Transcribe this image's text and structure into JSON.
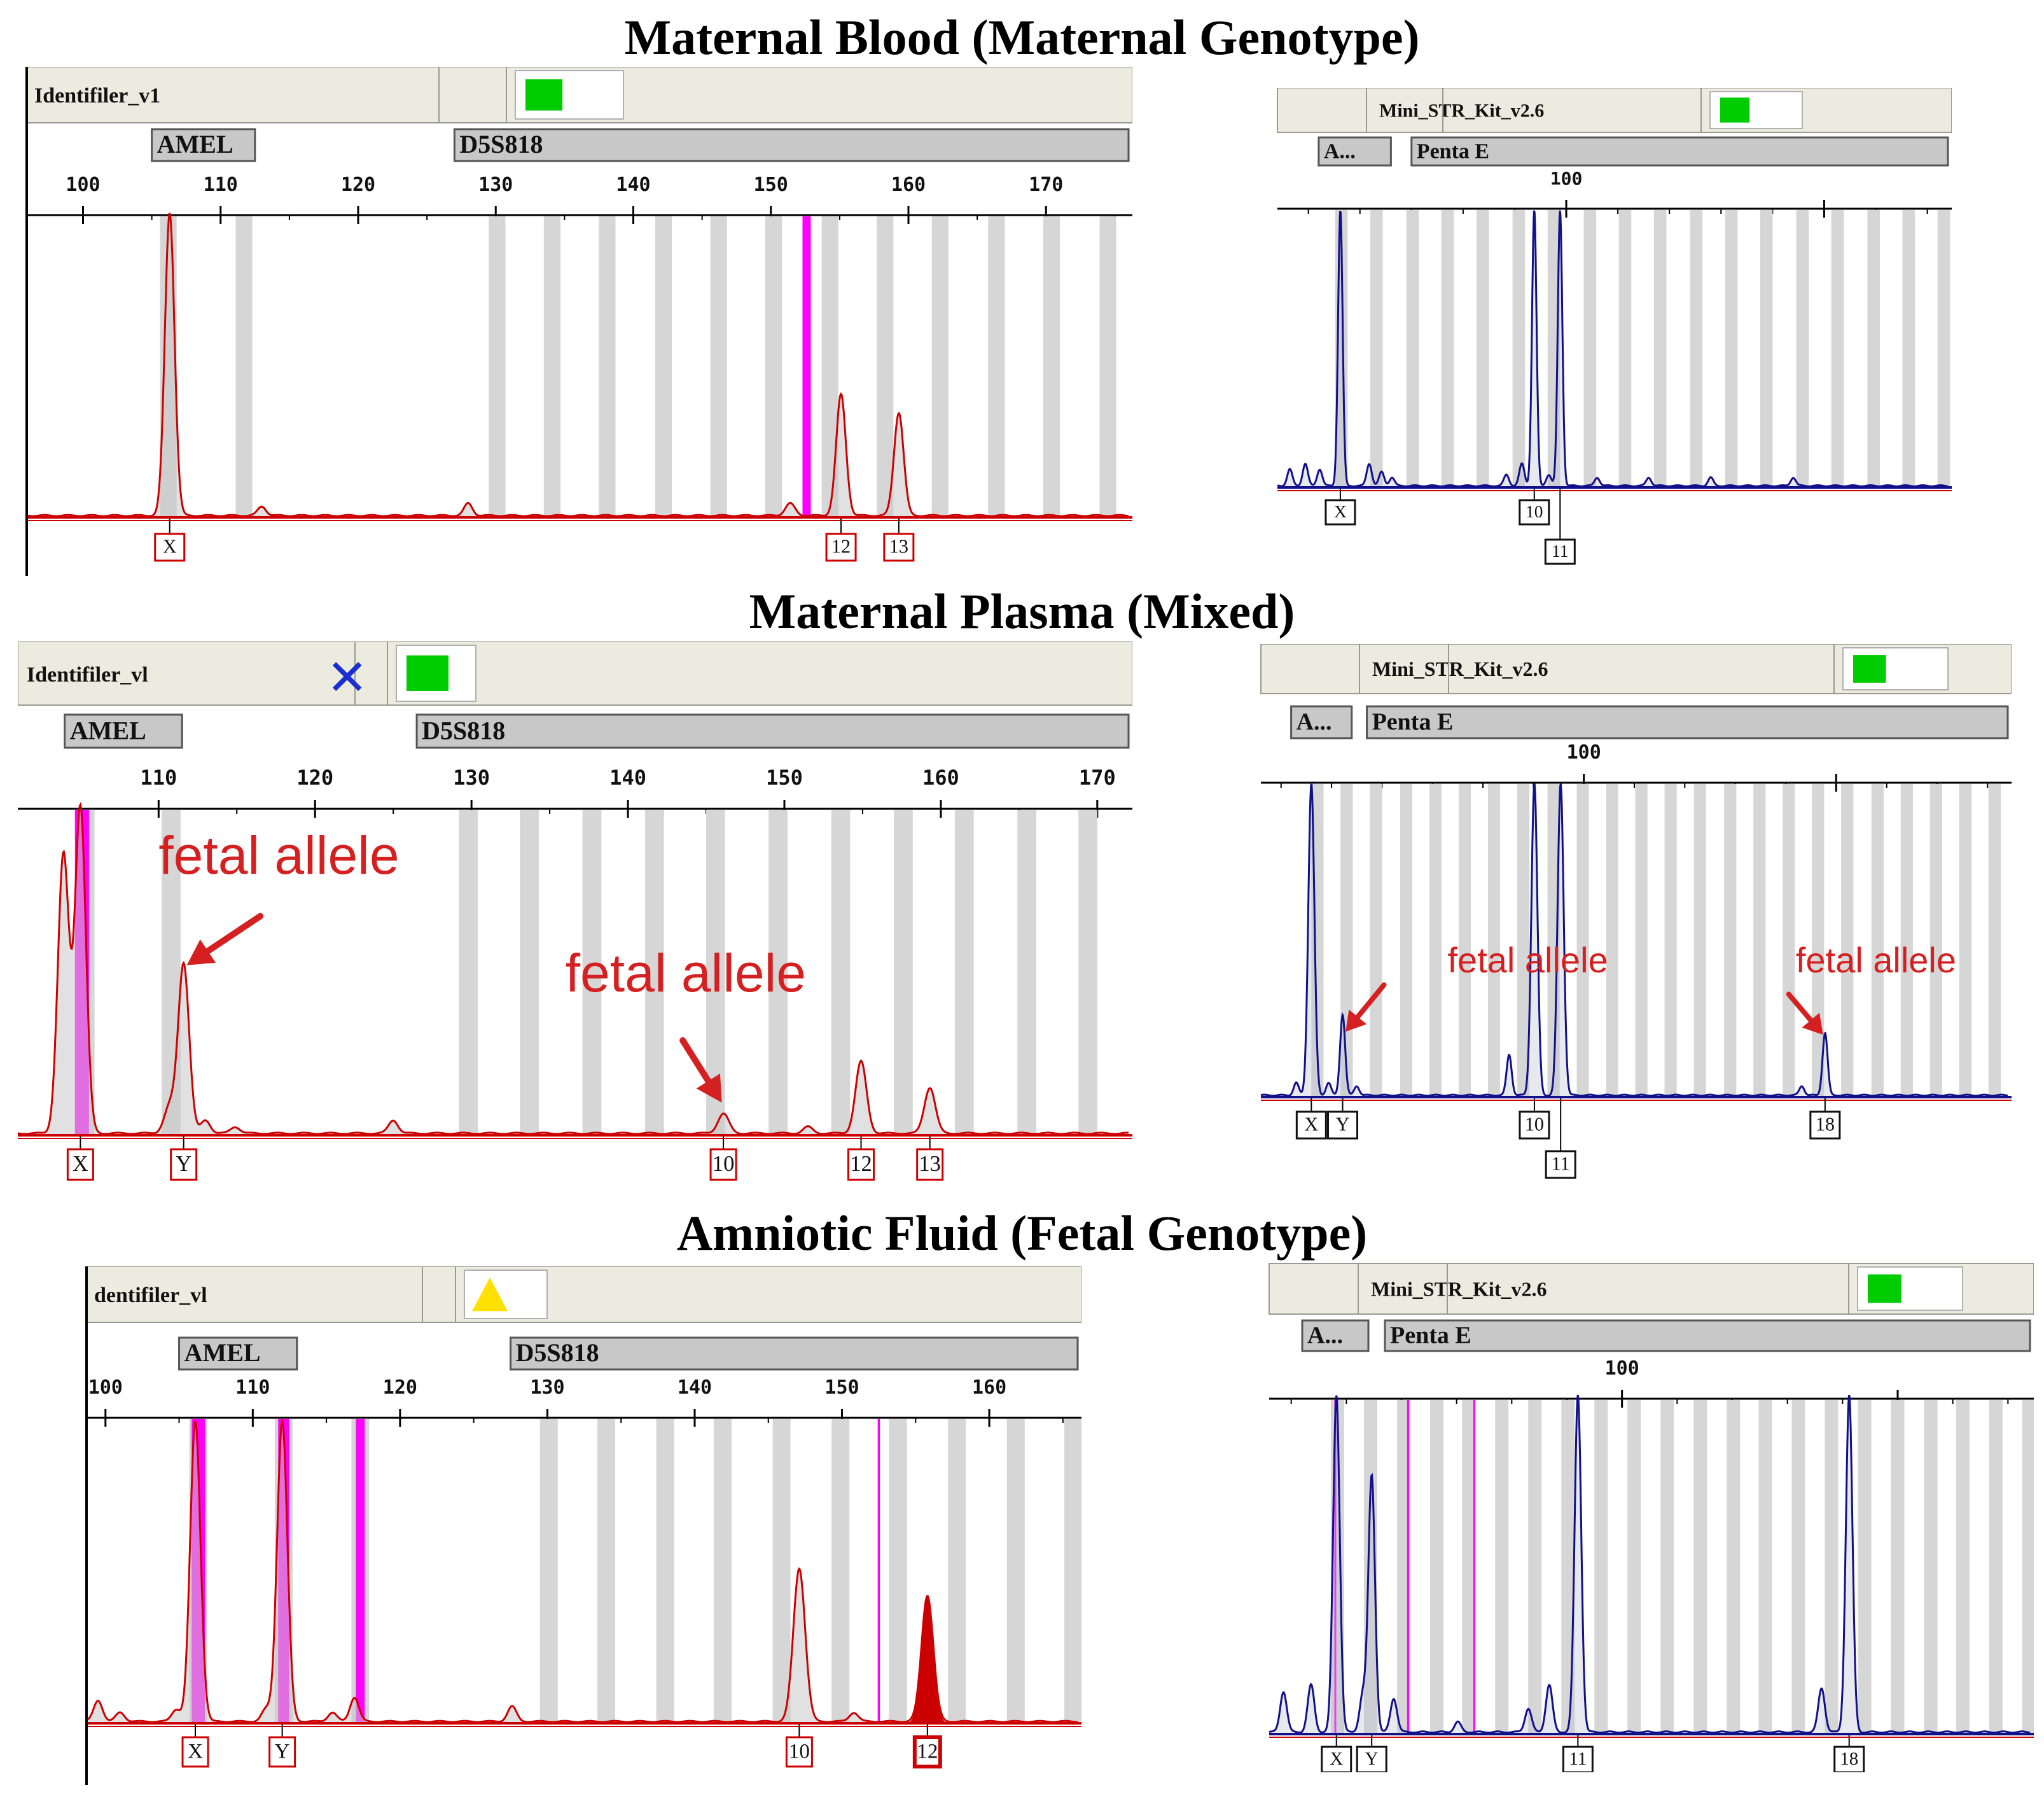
{
  "sections": [
    {
      "title": "Maternal Blood (Maternal Genotype)"
    },
    {
      "title": "Maternal Plasma (Mixed)"
    },
    {
      "title": "Amniotic Fluid (Fetal Genotype)"
    }
  ],
  "colors": {
    "red_trace": "#cc0000",
    "blue_trace": "#10108a",
    "magenta": "#ff00ff",
    "bin_gray": "#d6d6d6",
    "header_bg": "#ecebdf",
    "marker_bg": "#c8c8c8",
    "status_green": "#00cc00",
    "status_yellow": "#ffe000",
    "error_blue": "#1a2fd0",
    "annotation_red": "#d42020"
  },
  "chart_data": [
    {
      "id": "mb-identifiler",
      "type": "line",
      "title": "Maternal Blood (Maternal Genotype)",
      "kit": "Identifiler_v1",
      "status": "green-square",
      "markers": [
        {
          "name": "AMEL",
          "from": 105,
          "to": 112.5
        },
        {
          "name": "D5S818",
          "from": 127,
          "to": 176
        }
      ],
      "xlim": [
        96,
        176
      ],
      "ylim": [
        0,
        100
      ],
      "ticks": [
        100,
        110,
        120,
        130,
        140,
        150,
        160,
        170
      ],
      "trace_color": "red",
      "bins": [
        106.2,
        111.7,
        130.1,
        134.1,
        138.1,
        142.2,
        146.2,
        150.2,
        154.3,
        158.3,
        162.3,
        166.4,
        170.4,
        174.5
      ],
      "magenta_lines": [
        {
          "x": 152.6,
          "w": 0.6
        }
      ],
      "peaks": [
        {
          "x": 106.3,
          "h": 100,
          "w": 0.35
        },
        {
          "x": 113,
          "h": 3,
          "w": 0.3
        },
        {
          "x": 128,
          "h": 4,
          "w": 0.3
        },
        {
          "x": 151.4,
          "h": 4,
          "w": 0.35
        },
        {
          "x": 155.1,
          "h": 40,
          "w": 0.35
        },
        {
          "x": 159.3,
          "h": 34,
          "w": 0.35
        }
      ],
      "alleles": [
        {
          "label": "X",
          "x": 106.3,
          "row": 0
        },
        {
          "label": "12",
          "x": 155.1,
          "row": 0
        },
        {
          "label": "13",
          "x": 159.3,
          "row": 0
        }
      ],
      "annotations": []
    },
    {
      "id": "mb-ministr",
      "type": "line",
      "title": "Maternal Blood (Maternal Genotype)",
      "kit": "Mini_STR_Kit_v2.6",
      "status": "green-square",
      "markers": [
        {
          "name": "A...",
          "from": 76,
          "to": 83
        },
        {
          "name": "Penta E",
          "from": 85,
          "to": 137
        }
      ],
      "xlim": [
        72,
        137
      ],
      "ylim": [
        0,
        100
      ],
      "ticks": [
        100,
        125
      ],
      "trace_color": "blue",
      "bins": [
        78.2,
        81.6,
        85.1,
        88.5,
        91.9,
        95.4,
        98.8,
        102.3,
        105.7,
        109.1,
        112.6,
        116,
        119.4,
        122.9,
        126.3,
        129.8,
        133.2,
        136.6
      ],
      "magenta_lines": [],
      "peaks": [
        {
          "x": 73.2,
          "h": 6,
          "w": 0.25
        },
        {
          "x": 74.7,
          "h": 8,
          "w": 0.25
        },
        {
          "x": 76.1,
          "h": 6,
          "w": 0.25
        },
        {
          "x": 78.1,
          "h": 100,
          "w": 0.22
        },
        {
          "x": 80.9,
          "h": 8,
          "w": 0.25
        },
        {
          "x": 82.1,
          "h": 5,
          "w": 0.25
        },
        {
          "x": 83.1,
          "h": 3,
          "w": 0.25
        },
        {
          "x": 94.2,
          "h": 4,
          "w": 0.25
        },
        {
          "x": 95.7,
          "h": 8,
          "w": 0.25
        },
        {
          "x": 96.9,
          "h": 100,
          "w": 0.22
        },
        {
          "x": 98.3,
          "h": 4,
          "w": 0.25
        },
        {
          "x": 99.4,
          "h": 100,
          "w": 0.22
        },
        {
          "x": 103,
          "h": 3,
          "w": 0.25
        },
        {
          "x": 108,
          "h": 3,
          "w": 0.25
        },
        {
          "x": 114,
          "h": 3,
          "w": 0.25
        },
        {
          "x": 122,
          "h": 3,
          "w": 0.25
        }
      ],
      "alleles": [
        {
          "label": "X",
          "x": 78.1,
          "row": 0
        },
        {
          "label": "10",
          "x": 96.9,
          "row": 0
        },
        {
          "label": "11",
          "x": 99.4,
          "row": 1
        }
      ],
      "annotations": []
    },
    {
      "id": "mp-identifiler",
      "type": "line",
      "title": "Maternal Plasma (Mixed)",
      "kit": "Identifiler_vl",
      "status": "green-square",
      "error_mark": "✕",
      "markers": [
        {
          "name": "AMEL",
          "from": 104,
          "to": 111.5
        },
        {
          "name": "D5S818",
          "from": 126.5,
          "to": 172
        }
      ],
      "xlim": [
        101,
        172
      ],
      "ylim": [
        0,
        100
      ],
      "ticks": [
        110,
        120,
        130,
        140,
        150,
        160,
        170
      ],
      "trace_color": "red",
      "bins": [
        105.3,
        110.8,
        129.8,
        133.7,
        137.7,
        141.7,
        145.6,
        149.6,
        153.6,
        157.6,
        161.5,
        165.5,
        169.4
      ],
      "magenta_lines": [
        {
          "x": 105.1,
          "w": 0.9
        }
      ],
      "peaks": [
        {
          "x": 103.9,
          "h": 82,
          "w": 0.35
        },
        {
          "x": 105,
          "h": 100,
          "w": 0.35
        },
        {
          "x": 104.2,
          "h": 5,
          "w": 0.3
        },
        {
          "x": 110.7,
          "h": 8,
          "w": 0.35
        },
        {
          "x": 111.6,
          "h": 52,
          "w": 0.35
        },
        {
          "x": 113,
          "h": 4,
          "w": 0.3
        },
        {
          "x": 114.9,
          "h": 2,
          "w": 0.3
        },
        {
          "x": 125,
          "h": 4,
          "w": 0.3
        },
        {
          "x": 146.1,
          "h": 6,
          "w": 0.35
        },
        {
          "x": 151.5,
          "h": 2,
          "w": 0.3
        },
        {
          "x": 154.9,
          "h": 22,
          "w": 0.35
        },
        {
          "x": 159.3,
          "h": 14,
          "w": 0.35
        }
      ],
      "alleles": [
        {
          "label": "X",
          "x": 105,
          "row": 0
        },
        {
          "label": "Y",
          "x": 111.6,
          "row": 0
        },
        {
          "label": "10",
          "x": 146.1,
          "row": 0
        },
        {
          "label": "12",
          "x": 154.9,
          "row": 0
        },
        {
          "label": "13",
          "x": 159.3,
          "row": 0
        }
      ],
      "annotations": [
        {
          "text": "fetal allele",
          "x": 110,
          "y": 80,
          "arrow_x": 111.8,
          "arrow_y": 52,
          "start_x": 116.5,
          "start_y": 67
        },
        {
          "text": "fetal allele",
          "x": 136,
          "y": 44,
          "arrow_x": 146,
          "arrow_y": 10,
          "start_x": 143.5,
          "start_y": 29
        }
      ]
    },
    {
      "id": "mp-ministr",
      "type": "line",
      "title": "Maternal Plasma (Mixed)",
      "kit": "Mini_STR_Kit_v2.6",
      "status": "green-square",
      "markers": [
        {
          "name": "A...",
          "from": 71,
          "to": 77
        },
        {
          "name": "Penta E",
          "from": 78.5,
          "to": 142
        }
      ],
      "xlim": [
        68,
        142
      ],
      "ylim": [
        0,
        100
      ],
      "ticks": [
        100,
        125
      ],
      "trace_color": "blue",
      "bins": [
        73.6,
        76.5,
        79.4,
        82.4,
        85.3,
        88.2,
        91.1,
        94,
        97,
        99.9,
        102.8,
        105.7,
        108.6,
        111.5,
        114.5,
        117.4,
        120.3,
        123.2,
        126.1,
        129.1,
        132,
        134.9,
        137.8,
        140.7
      ],
      "magenta_lines": [],
      "peaks": [
        {
          "x": 71.5,
          "h": 4,
          "w": 0.25
        },
        {
          "x": 73,
          "h": 100,
          "w": 0.3
        },
        {
          "x": 74.7,
          "h": 4,
          "w": 0.25
        },
        {
          "x": 76.1,
          "h": 26,
          "w": 0.25
        },
        {
          "x": 77.5,
          "h": 3,
          "w": 0.25
        },
        {
          "x": 92.6,
          "h": 13,
          "w": 0.25
        },
        {
          "x": 95.1,
          "h": 100,
          "w": 0.3
        },
        {
          "x": 97.7,
          "h": 100,
          "w": 0.3
        },
        {
          "x": 121.6,
          "h": 3,
          "w": 0.25
        },
        {
          "x": 123.9,
          "h": 20,
          "w": 0.25
        }
      ],
      "alleles": [
        {
          "label": "X",
          "x": 73,
          "row": 0
        },
        {
          "label": "Y",
          "x": 76.1,
          "row": 0
        },
        {
          "label": "10",
          "x": 95.1,
          "row": 0
        },
        {
          "label": "11",
          "x": 97.7,
          "row": 1
        },
        {
          "label": "18",
          "x": 123.9,
          "row": 0
        }
      ],
      "annotations": [
        {
          "text": "fetal allele",
          "x": 86.5,
          "y": 40,
          "arrow_x": 76.4,
          "arrow_y": 21,
          "start_x": 80.2,
          "start_y": 36
        },
        {
          "text": "fetal allele",
          "x": 121,
          "y": 40,
          "arrow_x": 123.7,
          "arrow_y": 20,
          "start_x": 120.3,
          "start_y": 33
        }
      ]
    },
    {
      "id": "af-identifiler",
      "type": "line",
      "title": "Amniotic Fluid (Fetal Genotype)",
      "kit": "dentifiler_vl",
      "status": "yellow-triangle",
      "markers": [
        {
          "name": "AMEL",
          "from": 105,
          "to": 113
        },
        {
          "name": "D5S818",
          "from": 127.5,
          "to": 166
        }
      ],
      "xlim": [
        98.8,
        166
      ],
      "ylim": [
        0,
        100
      ],
      "ticks": [
        100,
        110,
        120,
        130,
        140,
        150,
        160
      ],
      "trace_color": "red",
      "bins": [
        106.3,
        112.1,
        117.3,
        130.1,
        134,
        138,
        141.9,
        145.9,
        149.9,
        153.8,
        157.8,
        161.8,
        165.7
      ],
      "magenta_lines": [
        {
          "x": 106.3,
          "w": 0.9
        },
        {
          "x": 112.1,
          "w": 0.75
        },
        {
          "x": 117.3,
          "w": 0.6
        },
        {
          "x": 152.5,
          "w": 0.15
        }
      ],
      "peaks": [
        {
          "x": 99.5,
          "h": 7,
          "w": 0.3
        },
        {
          "x": 101,
          "h": 3,
          "w": 0.3
        },
        {
          "x": 104.8,
          "h": 4,
          "w": 0.3
        },
        {
          "x": 106.1,
          "h": 100,
          "w": 0.35
        },
        {
          "x": 110.9,
          "h": 4,
          "w": 0.3
        },
        {
          "x": 112,
          "h": 100,
          "w": 0.35
        },
        {
          "x": 115.4,
          "h": 3,
          "w": 0.3
        },
        {
          "x": 116.9,
          "h": 8,
          "w": 0.3
        },
        {
          "x": 127.6,
          "h": 5,
          "w": 0.3
        },
        {
          "x": 147.1,
          "h": 51,
          "w": 0.4
        },
        {
          "x": 150.8,
          "h": 3,
          "w": 0.3
        },
        {
          "x": 155.8,
          "h": 42,
          "w": 0.4
        }
      ],
      "filled_peak": {
        "x": 155.8
      },
      "alleles": [
        {
          "label": "X",
          "x": 106.1,
          "row": 0
        },
        {
          "label": "Y",
          "x": 112,
          "row": 0
        },
        {
          "label": "10",
          "x": 147.1,
          "row": 0
        },
        {
          "label": "12",
          "x": 155.8,
          "row": 0,
          "bold": true
        }
      ],
      "annotations": []
    },
    {
      "id": "af-ministr",
      "type": "line",
      "title": "Amniotic Fluid (Fetal Genotype)",
      "kit": "Mini_STR_Kit_v2.6",
      "status": "green-square",
      "markers": [
        {
          "name": "A...",
          "from": 71,
          "to": 77
        },
        {
          "name": "Penta E",
          "from": 78.5,
          "to": 137
        }
      ],
      "xlim": [
        68,
        137
      ],
      "ylim": [
        0,
        100
      ],
      "ticks": [
        100,
        125
      ],
      "trace_color": "blue",
      "bins": [
        74.2,
        77.2,
        80.2,
        83.2,
        86.1,
        89.1,
        92.1,
        95.1,
        98.1,
        101.1,
        104.1,
        107.1,
        110.1,
        113,
        116,
        119,
        122,
        125,
        128,
        130.9,
        133.9,
        136.9
      ],
      "magenta_lines": [
        {
          "x": 74,
          "w": 0.15
        },
        {
          "x": 80.6,
          "w": 0.12
        },
        {
          "x": 86.6,
          "w": 0.12
        }
      ],
      "peaks": [
        {
          "x": 69.3,
          "h": 12,
          "w": 0.3
        },
        {
          "x": 71.8,
          "h": 14,
          "w": 0.3
        },
        {
          "x": 74.1,
          "h": 100,
          "w": 0.3
        },
        {
          "x": 76.5,
          "h": 11,
          "w": 0.3
        },
        {
          "x": 77.3,
          "h": 76,
          "w": 0.3
        },
        {
          "x": 79.3,
          "h": 10,
          "w": 0.3
        },
        {
          "x": 85.1,
          "h": 3,
          "w": 0.3
        },
        {
          "x": 91.5,
          "h": 7,
          "w": 0.3
        },
        {
          "x": 93.4,
          "h": 14,
          "w": 0.3
        },
        {
          "x": 96,
          "h": 100,
          "w": 0.3
        },
        {
          "x": 118.1,
          "h": 13,
          "w": 0.3
        },
        {
          "x": 120.6,
          "h": 100,
          "w": 0.3
        }
      ],
      "alleles": [
        {
          "label": "X",
          "x": 74.1,
          "row": 0
        },
        {
          "label": "Y",
          "x": 77.3,
          "row": 0
        },
        {
          "label": "11",
          "x": 96,
          "row": 0
        },
        {
          "label": "18",
          "x": 120.6,
          "row": 0
        }
      ],
      "annotations": []
    }
  ]
}
